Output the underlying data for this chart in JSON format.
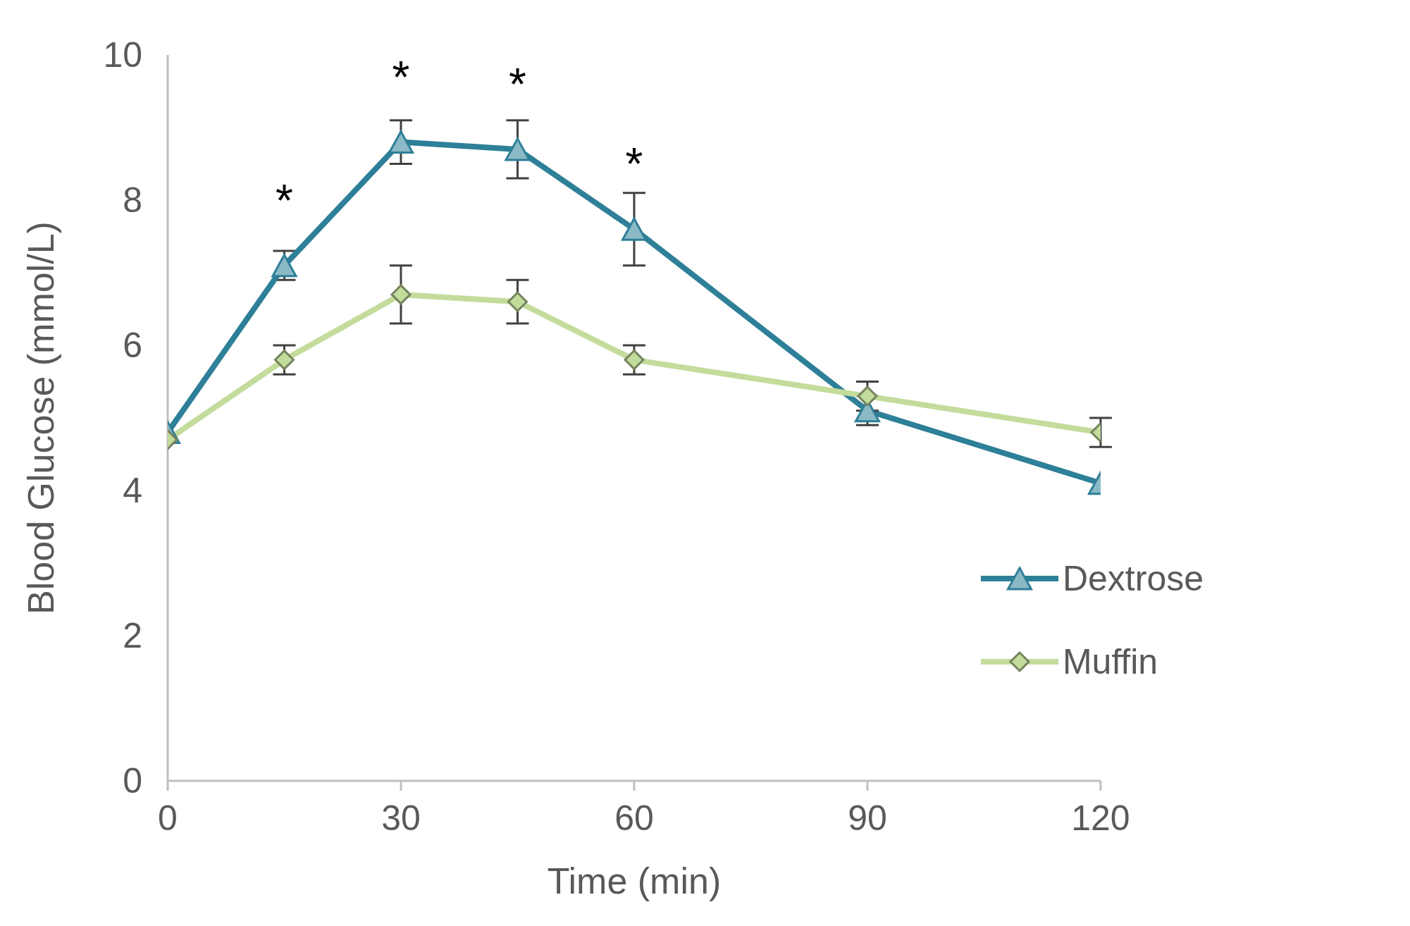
{
  "chart_data": {
    "type": "line",
    "xlabel": "Time (min)",
    "ylabel": "Blood Glucose (mmol/L)",
    "x": [
      0,
      15,
      30,
      45,
      60,
      90,
      120
    ],
    "series": [
      {
        "name": "Dextrose",
        "color": "#2e7f98",
        "marker": "triangle",
        "values": [
          4.8,
          7.1,
          8.8,
          8.7,
          7.6,
          5.1,
          4.1
        ],
        "errors": [
          null,
          0.2,
          0.3,
          0.4,
          0.5,
          0.2,
          null
        ]
      },
      {
        "name": "Muffin",
        "color": "#c3dc9c",
        "marker": "diamond",
        "values": [
          4.7,
          5.8,
          6.7,
          6.6,
          5.8,
          5.3,
          4.8
        ],
        "errors": [
          null,
          0.2,
          0.4,
          0.3,
          0.2,
          0.2,
          0.2
        ]
      }
    ],
    "xlim": [
      0,
      120
    ],
    "xticks": [
      0,
      30,
      60,
      90,
      120
    ],
    "ylim": [
      0,
      10
    ],
    "yticks": [
      0,
      2,
      4,
      6,
      8,
      10
    ],
    "grid": false,
    "legend": "bottom right",
    "annotations": [
      {
        "text": "*",
        "x": 15,
        "y": 7.1
      },
      {
        "text": "*",
        "x": 30,
        "y": 8.8
      },
      {
        "text": "*",
        "x": 45,
        "y": 8.7
      },
      {
        "text": "*",
        "x": 60,
        "y": 7.6
      }
    ]
  }
}
